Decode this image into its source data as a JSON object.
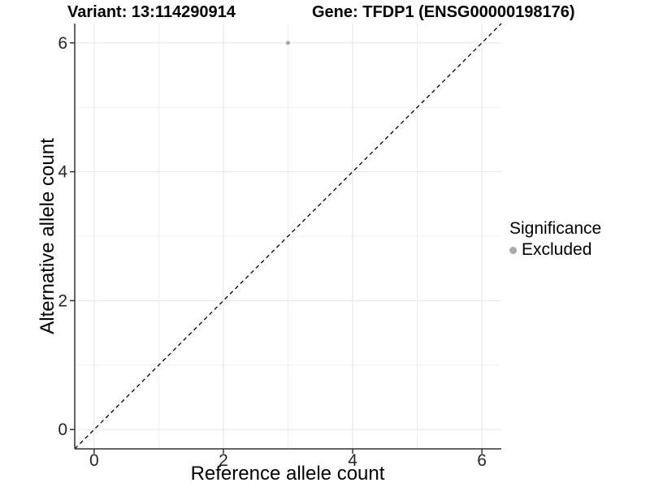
{
  "titles": {
    "variant": "Variant: 13:114290914",
    "gene": "Gene: TFDP1 (ENSG00000198176)"
  },
  "chart_data": {
    "type": "scatter",
    "title_left": "Variant: 13:114290914",
    "title_right": "Gene: TFDP1 (ENSG00000198176)",
    "xlabel": "Reference allele count",
    "ylabel": "Alternative allele count",
    "xlim": [
      -0.3,
      6.3
    ],
    "ylim": [
      -0.3,
      6.3
    ],
    "x_major_ticks": [
      0,
      2,
      4,
      6
    ],
    "y_major_ticks": [
      0,
      2,
      4,
      6
    ],
    "x_minor_ticks": [
      1,
      3,
      5
    ],
    "y_minor_ticks": [
      1,
      3,
      5
    ],
    "grid": true,
    "legend_position": "right",
    "reference_line": {
      "slope": 1,
      "intercept": 0,
      "linestyle": "dashed",
      "color": "#000000"
    },
    "series": [
      {
        "name": "Excluded",
        "color": "#a9a9a9",
        "points": [
          {
            "x": 3,
            "y": 6
          }
        ]
      }
    ]
  },
  "legend": {
    "title": "Significance",
    "items": [
      {
        "label": "Excluded",
        "marker_color": "#a9a9a9"
      }
    ]
  },
  "colors": {
    "background": "#ffffff",
    "axis_line": "#333333",
    "tick_label": "#262626",
    "grid_major": "#e4e4e4",
    "grid_minor": "#efefef",
    "point": "#a9a9a9"
  }
}
